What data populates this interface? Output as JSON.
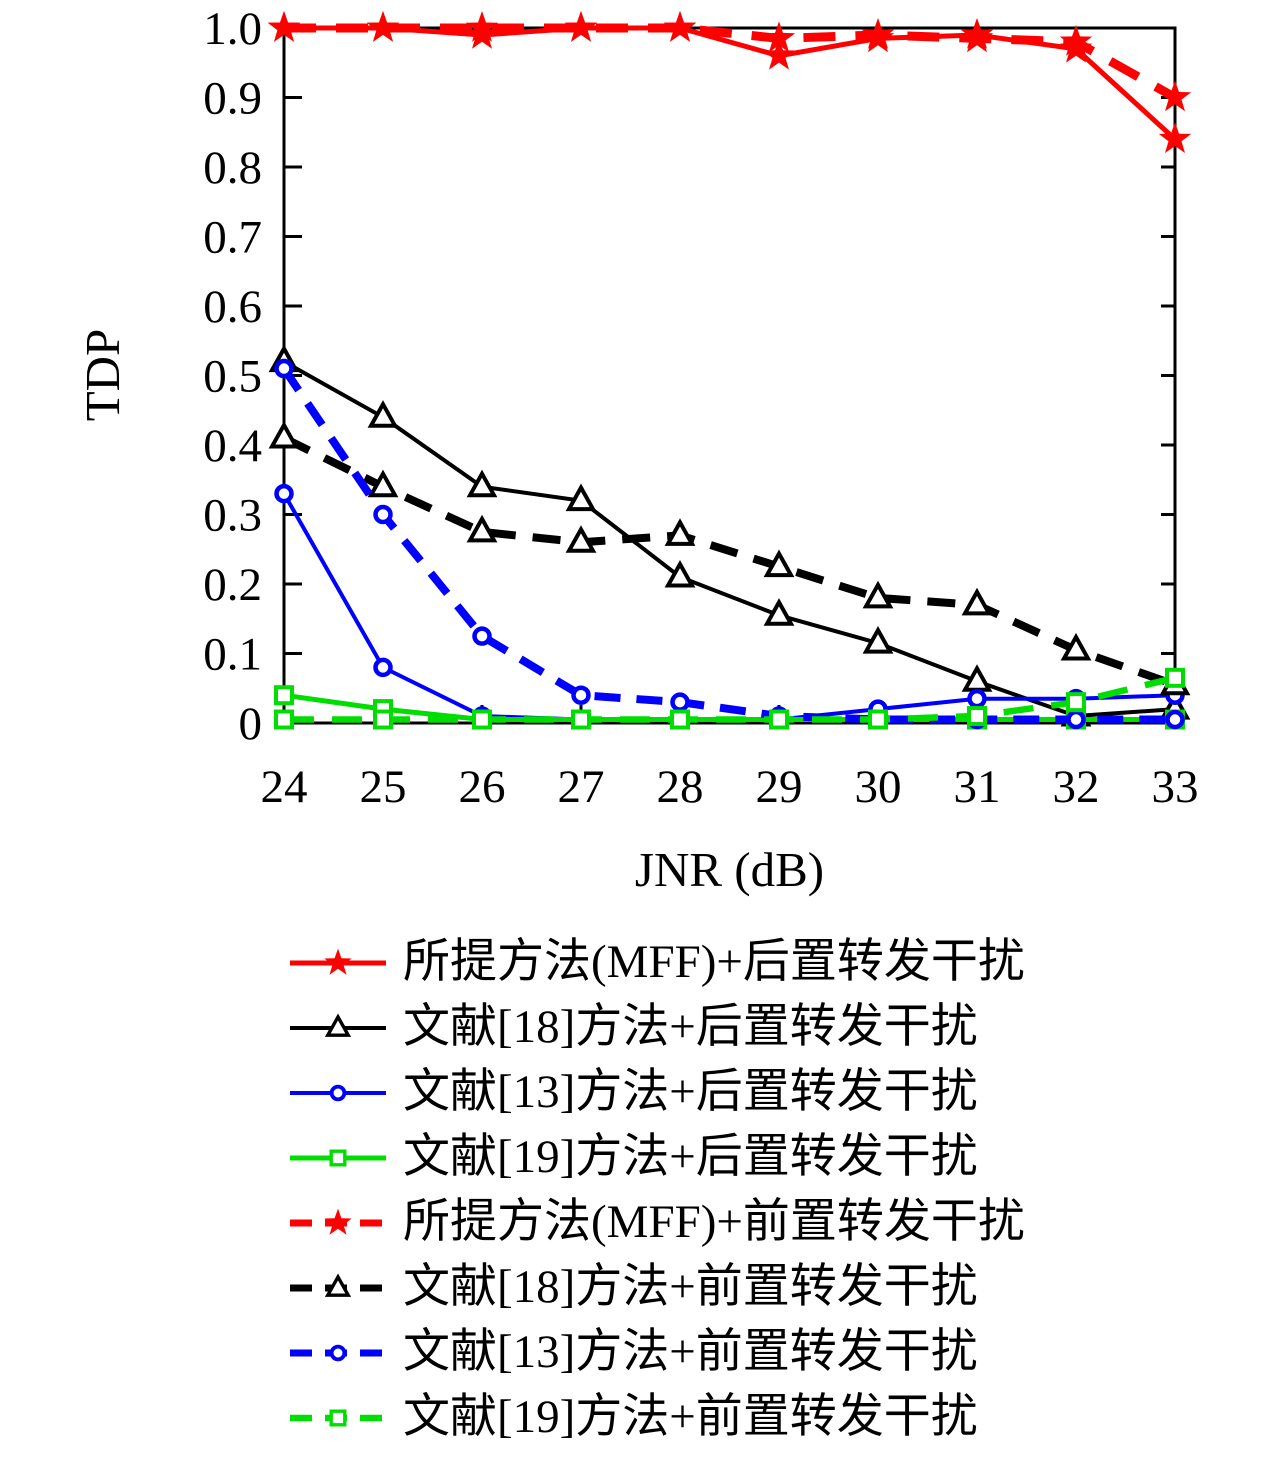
{
  "chart_data": {
    "type": "line",
    "title": "",
    "xlabel": "JNR (dB)",
    "ylabel": "TDP",
    "x": [
      24,
      25,
      26,
      27,
      28,
      29,
      30,
      31,
      32,
      33
    ],
    "xlim": [
      24,
      33
    ],
    "ylim": [
      0,
      1.0
    ],
    "ytick_values": [
      0,
      0.1,
      0.2,
      0.3,
      0.4,
      0.5,
      0.6,
      0.7,
      0.8,
      0.9,
      1.0
    ],
    "ytick_labels": [
      "0",
      "0.1",
      "0.2",
      "0.3",
      "0.4",
      "0.5",
      "0.6",
      "0.7",
      "0.8",
      "0.9",
      "1.0"
    ],
    "grid": false,
    "legend_position": "below-chart",
    "series": [
      {
        "name": "所提方法(MFF)+后置转发干扰",
        "color": "#ff0000",
        "line": "solid",
        "marker": "star",
        "values": [
          1.0,
          1.0,
          0.99,
          1.0,
          1.0,
          0.96,
          0.985,
          0.99,
          0.97,
          0.84
        ]
      },
      {
        "name": "文献[18]方法+后置转发干扰",
        "color": "#000000",
        "line": "solid",
        "marker": "triangle",
        "values": [
          0.52,
          0.44,
          0.34,
          0.32,
          0.21,
          0.155,
          0.115,
          0.06,
          0.01,
          0.02
        ]
      },
      {
        "name": "文献[13]方法+后置转发干扰",
        "color": "#0000ff",
        "line": "solid",
        "marker": "circle",
        "values": [
          0.33,
          0.08,
          0.01,
          0.005,
          0.005,
          0.005,
          0.02,
          0.035,
          0.035,
          0.04
        ]
      },
      {
        "name": "文献[19]方法+后置转发干扰",
        "color": "#00dd00",
        "line": "solid",
        "marker": "square",
        "values": [
          0.04,
          0.02,
          0.005,
          0.005,
          0.005,
          0.005,
          0.005,
          0.005,
          0.005,
          0.005
        ]
      },
      {
        "name": "所提方法(MFF)+前置转发干扰",
        "color": "#ff0000",
        "line": "dashed",
        "marker": "star",
        "values": [
          1.0,
          1.0,
          1.0,
          1.0,
          1.0,
          0.985,
          0.99,
          0.985,
          0.98,
          0.9
        ]
      },
      {
        "name": "文献[18]方法+前置转发干扰",
        "color": "#000000",
        "line": "dashed",
        "marker": "triangle",
        "values": [
          0.41,
          0.34,
          0.275,
          0.26,
          0.27,
          0.225,
          0.18,
          0.17,
          0.105,
          0.055
        ]
      },
      {
        "name": "文献[13]方法+前置转发干扰",
        "color": "#0000ff",
        "line": "dashed",
        "marker": "circle",
        "values": [
          0.51,
          0.3,
          0.125,
          0.04,
          0.03,
          0.01,
          0.005,
          0.005,
          0.005,
          0.005
        ]
      },
      {
        "name": "文献[19]方法+前置转发干扰",
        "color": "#00dd00",
        "line": "dashed",
        "marker": "square",
        "values": [
          0.005,
          0.005,
          0.005,
          0.005,
          0.005,
          0.005,
          0.005,
          0.01,
          0.03,
          0.065
        ]
      }
    ]
  }
}
